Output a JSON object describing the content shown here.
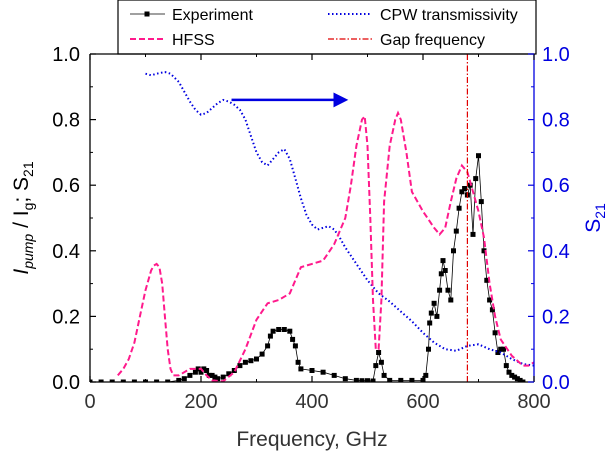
{
  "chart_data": {
    "type": "line",
    "xlabel": "Frequency, GHz",
    "ylabel": {
      "main": "I",
      "sub1": "pump",
      "mid": " / I",
      "sub2": "g",
      "tail": "; S",
      "sub3": "21"
    },
    "ylabel_right": {
      "main": "S",
      "sub": "21"
    },
    "xlim": [
      0,
      800
    ],
    "ylim": [
      0,
      1.0
    ],
    "ylim_right": [
      0,
      1.0
    ],
    "x_ticks": [
      "0",
      "200",
      "400",
      "600",
      "800"
    ],
    "y_ticks": [
      "0.0",
      "0.2",
      "0.4",
      "0.6",
      "0.8",
      "1.0"
    ],
    "y_ticks_right": [
      "0.0",
      "0.2",
      "0.4",
      "0.6",
      "0.8",
      "1.0"
    ],
    "grid": false,
    "legend": {
      "placement": "top",
      "entries": [
        "Experiment",
        "CPW transmissivity",
        "HFSS",
        "Gap frequency"
      ]
    },
    "colors": {
      "experiment": "#000000",
      "cpw": "#0000e0",
      "hfss": "#ff1a8c",
      "gap": "#e00000",
      "right_axis": "#0000e0"
    },
    "series": [
      {
        "name": "Experiment",
        "style": "line-square-markers",
        "x": [
          0,
          20,
          40,
          60,
          80,
          100,
          120,
          140,
          160,
          170,
          180,
          190,
          195,
          200,
          205,
          210,
          215,
          220,
          225,
          230,
          240,
          250,
          260,
          270,
          280,
          290,
          300,
          310,
          320,
          325,
          330,
          340,
          350,
          360,
          365,
          370,
          375,
          380,
          400,
          420,
          440,
          460,
          480,
          490,
          500,
          510,
          515,
          520,
          525,
          530,
          540,
          560,
          580,
          600,
          605,
          610,
          612,
          615,
          620,
          625,
          630,
          633,
          636,
          640,
          645,
          650,
          655,
          660,
          665,
          670,
          675,
          680,
          685,
          690,
          695,
          700,
          705,
          710,
          715,
          720,
          725,
          730,
          735,
          740,
          745,
          750,
          755,
          760,
          765,
          770,
          775,
          780
        ],
        "y": [
          0.0,
          0.0,
          0.0,
          0.0,
          0.0,
          0.0,
          0.0,
          0.0,
          0.005,
          0.01,
          0.02,
          0.03,
          0.04,
          0.03,
          0.04,
          0.035,
          0.02,
          0.02,
          0.015,
          0.01,
          0.015,
          0.025,
          0.035,
          0.05,
          0.06,
          0.065,
          0.07,
          0.085,
          0.11,
          0.14,
          0.155,
          0.16,
          0.16,
          0.155,
          0.13,
          0.11,
          0.06,
          0.04,
          0.035,
          0.03,
          0.02,
          0.01,
          0.005,
          0.004,
          0.004,
          0.003,
          0.05,
          0.09,
          0.06,
          0.02,
          0.005,
          0.005,
          0.005,
          0.005,
          0.02,
          0.1,
          0.18,
          0.21,
          0.24,
          0.2,
          0.28,
          0.33,
          0.37,
          0.34,
          0.28,
          0.25,
          0.4,
          0.46,
          0.53,
          0.58,
          0.59,
          0.57,
          0.6,
          0.45,
          0.62,
          0.69,
          0.55,
          0.4,
          0.31,
          0.25,
          0.22,
          0.15,
          0.09,
          0.1,
          0.1,
          0.05,
          0.03,
          0.02,
          0.015,
          0.01,
          0.005,
          0.0
        ]
      },
      {
        "name": "CPW transmissivity",
        "style": "dotted",
        "axis": "right",
        "x": [
          100,
          110,
          120,
          135,
          145,
          160,
          170,
          180,
          190,
          200,
          210,
          220,
          230,
          240,
          250,
          260,
          270,
          280,
          290,
          300,
          310,
          320,
          330,
          340,
          350,
          360,
          370,
          380,
          390,
          400,
          410,
          420,
          430,
          440,
          450,
          460,
          480,
          500,
          520,
          540,
          560,
          580,
          600,
          620,
          640,
          660,
          680,
          700,
          720,
          740,
          760,
          780,
          800
        ],
        "y": [
          0.94,
          0.935,
          0.94,
          0.945,
          0.94,
          0.915,
          0.885,
          0.855,
          0.83,
          0.815,
          0.82,
          0.835,
          0.85,
          0.86,
          0.855,
          0.845,
          0.83,
          0.8,
          0.75,
          0.7,
          0.67,
          0.66,
          0.68,
          0.7,
          0.71,
          0.68,
          0.62,
          0.56,
          0.51,
          0.48,
          0.465,
          0.47,
          0.475,
          0.465,
          0.44,
          0.41,
          0.36,
          0.31,
          0.27,
          0.245,
          0.215,
          0.185,
          0.15,
          0.12,
          0.1,
          0.095,
          0.11,
          0.115,
          0.1,
          0.09,
          0.07,
          0.055,
          0.05
        ]
      },
      {
        "name": "HFSS",
        "style": "dashed",
        "x": [
          50,
          60,
          70,
          80,
          90,
          100,
          110,
          115,
          120,
          125,
          130,
          135,
          140,
          145,
          150,
          160,
          180,
          200,
          210,
          220,
          240,
          260,
          280,
          300,
          320,
          340,
          350,
          360,
          380,
          400,
          420,
          440,
          460,
          470,
          480,
          490,
          495,
          500,
          505,
          510,
          515,
          520,
          525,
          530,
          540,
          550,
          555,
          560,
          570,
          580,
          600,
          620,
          630,
          640,
          650,
          660,
          670,
          680,
          690,
          700,
          710,
          720,
          730,
          740,
          760,
          780,
          790,
          800
        ],
        "y": [
          0.02,
          0.04,
          0.07,
          0.12,
          0.2,
          0.28,
          0.34,
          0.355,
          0.36,
          0.35,
          0.3,
          0.2,
          0.1,
          0.04,
          0.02,
          0.02,
          0.04,
          0.04,
          0.02,
          0.005,
          0.002,
          0.03,
          0.1,
          0.19,
          0.24,
          0.25,
          0.26,
          0.27,
          0.35,
          0.36,
          0.37,
          0.42,
          0.5,
          0.6,
          0.72,
          0.8,
          0.81,
          0.72,
          0.5,
          0.25,
          0.1,
          0.1,
          0.25,
          0.55,
          0.72,
          0.8,
          0.82,
          0.8,
          0.7,
          0.58,
          0.52,
          0.47,
          0.45,
          0.47,
          0.55,
          0.62,
          0.66,
          0.64,
          0.58,
          0.52,
          0.44,
          0.3,
          0.2,
          0.13,
          0.08,
          0.05,
          0.05,
          0.06
        ]
      },
      {
        "name": "Gap frequency",
        "style": "dash-dot",
        "x": [
          680,
          680
        ],
        "y": [
          0,
          1.0
        ]
      }
    ],
    "annotations": [
      {
        "type": "arrow",
        "direction": "right",
        "x_from": 255,
        "x_to": 460,
        "y_right": 0.86,
        "color": "#0000e0"
      }
    ]
  }
}
